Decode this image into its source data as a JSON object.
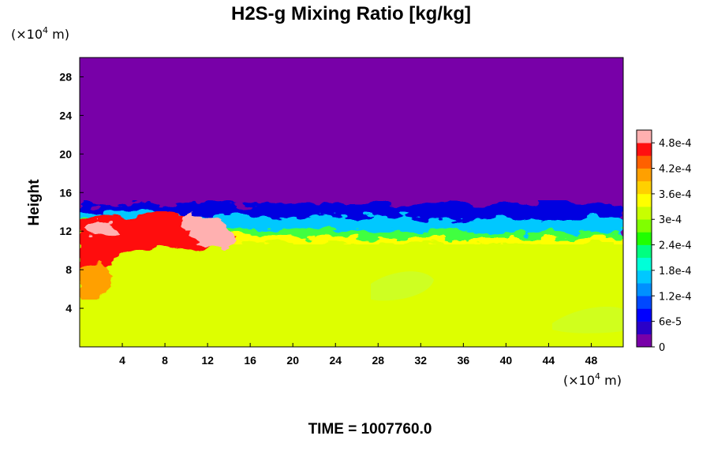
{
  "chart_data": {
    "type": "heatmap",
    "title": "H2S-g Mixing Ratio [kg/kg]",
    "ylabel": "Height",
    "x_unit": {
      "base": "(×10",
      "exp": "4",
      "unit": " m)"
    },
    "y_unit": {
      "base": "(×10",
      "exp": "4",
      "unit": " m)"
    },
    "xlim": [
      0,
      51
    ],
    "ylim": [
      0,
      30
    ],
    "x_ticks": [
      4,
      8,
      12,
      16,
      20,
      24,
      28,
      32,
      36,
      40,
      44,
      48
    ],
    "y_ticks": [
      4,
      8,
      12,
      16,
      20,
      24,
      28
    ],
    "colorbar": {
      "min": 0,
      "max": 0.00051,
      "labels": [
        "0",
        "6e-5",
        "1.2e-4",
        "1.8e-4",
        "2.4e-4",
        "3e-4",
        "3.6e-4",
        "4.2e-4",
        "4.8e-4"
      ],
      "label_values": [
        0,
        6e-05,
        0.00012,
        0.00018,
        0.00024,
        0.0003,
        0.00036,
        0.00042,
        0.00048
      ],
      "n_levels": 17,
      "colors": [
        "#7800a8",
        "#2a00c8",
        "#0000ff",
        "#0048ff",
        "#0090ff",
        "#00c8ff",
        "#00ffd8",
        "#00ff80",
        "#20ff00",
        "#80ff00",
        "#c8ff00",
        "#ffff00",
        "#ffd000",
        "#ffa000",
        "#ff6000",
        "#ff1010",
        "#ffb0b0"
      ]
    },
    "field_summary": {
      "upper_region_value": 0,
      "lower_region_value": 0.00033,
      "interface_height": 15,
      "mixing_layer_range": [
        10,
        15
      ]
    },
    "time_label": "TIME = 1007760.0"
  }
}
